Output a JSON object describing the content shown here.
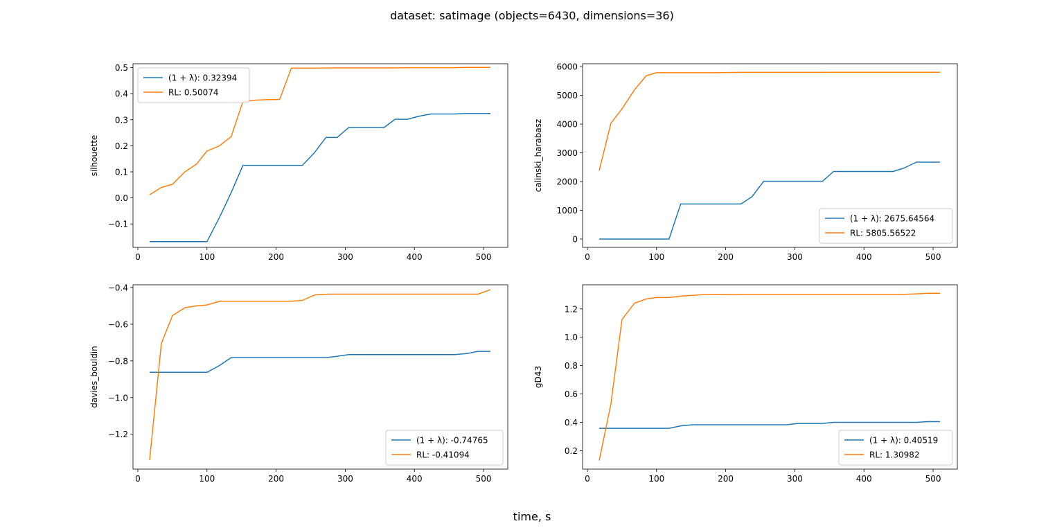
{
  "figure": {
    "suptitle": "dataset: satimage (objects=6430, dimensions=36)",
    "supxlabel": "time, s"
  },
  "colors": {
    "series1": "#1f77b4",
    "series2": "#ff7f0e"
  },
  "chart_data": [
    {
      "type": "line",
      "ylabel": "silhouette",
      "xlim": [
        -7,
        535
      ],
      "ylim": [
        -0.19,
        0.515
      ],
      "xticks": [
        0,
        100,
        200,
        300,
        400,
        500
      ],
      "yticks": [
        -0.1,
        0.0,
        0.1,
        0.2,
        0.3,
        0.4,
        0.5
      ],
      "ytick_labels": [
        "−0.1",
        "0.0",
        "0.1",
        "0.2",
        "0.3",
        "0.4",
        "0.5"
      ],
      "legend_loc": "upper left",
      "series": [
        {
          "name": "(1 + λ): 0.32394",
          "color": "#1f77b4",
          "x": [
            17,
            100,
            118,
            135,
            152,
            168,
            185,
            202,
            218,
            238,
            255,
            272,
            288,
            305,
            322,
            340,
            356,
            372,
            390,
            406,
            424,
            442,
            458,
            476,
            492,
            510
          ],
          "y": [
            -0.168,
            -0.168,
            -0.075,
            0.02,
            0.125,
            0.125,
            0.125,
            0.125,
            0.125,
            0.125,
            0.172,
            0.232,
            0.232,
            0.27,
            0.27,
            0.27,
            0.27,
            0.302,
            0.302,
            0.313,
            0.322,
            0.322,
            0.322,
            0.324,
            0.324,
            0.324
          ]
        },
        {
          "name": "RL: 0.50074",
          "color": "#ff7f0e",
          "x": [
            17,
            34,
            50,
            68,
            85,
            100,
            118,
            135,
            152,
            168,
            185,
            205,
            222,
            238,
            256,
            275,
            290,
            305,
            322,
            340,
            356,
            372,
            390,
            406,
            424,
            442,
            458,
            476,
            492,
            510
          ],
          "y": [
            0.012,
            0.04,
            0.052,
            0.1,
            0.13,
            0.18,
            0.2,
            0.235,
            0.37,
            0.375,
            0.377,
            0.378,
            0.498,
            0.498,
            0.498,
            0.499,
            0.499,
            0.499,
            0.499,
            0.499,
            0.499,
            0.499,
            0.5,
            0.5,
            0.5,
            0.5,
            0.5,
            0.501,
            0.501,
            0.501
          ]
        }
      ]
    },
    {
      "type": "line",
      "ylabel": "calinski_harabasz",
      "xlim": [
        -7,
        535
      ],
      "ylim": [
        -290,
        6100
      ],
      "xticks": [
        0,
        100,
        200,
        300,
        400,
        500
      ],
      "yticks": [
        0,
        1000,
        2000,
        3000,
        4000,
        5000,
        6000
      ],
      "ytick_labels": [
        "0",
        "1000",
        "2000",
        "3000",
        "4000",
        "5000",
        "6000"
      ],
      "legend_loc": "lower right",
      "series": [
        {
          "name": "(1 + λ): 2675.64564",
          "color": "#1f77b4",
          "x": [
            17,
            118,
            135,
            152,
            168,
            185,
            202,
            222,
            238,
            255,
            272,
            288,
            305,
            322,
            340,
            356,
            372,
            390,
            406,
            424,
            442,
            458,
            476,
            492,
            510
          ],
          "y": [
            0,
            0,
            1220,
            1220,
            1220,
            1220,
            1220,
            1220,
            1470,
            2010,
            2010,
            2010,
            2010,
            2010,
            2010,
            2350,
            2350,
            2350,
            2350,
            2350,
            2350,
            2470,
            2676,
            2676,
            2676
          ]
        },
        {
          "name": "RL: 5805.56522",
          "color": "#ff7f0e",
          "x": [
            17,
            34,
            50,
            68,
            85,
            100,
            118,
            135,
            152,
            168,
            185,
            202,
            222,
            238,
            256,
            275,
            290,
            305,
            322,
            340,
            356,
            372,
            390,
            406,
            424,
            442,
            458,
            476,
            492,
            510
          ],
          "y": [
            2380,
            4030,
            4530,
            5190,
            5680,
            5790,
            5790,
            5790,
            5790,
            5790,
            5790,
            5795,
            5800,
            5800,
            5800,
            5800,
            5800,
            5802,
            5802,
            5802,
            5803,
            5803,
            5804,
            5804,
            5804,
            5805,
            5805,
            5806,
            5806,
            5806
          ]
        }
      ]
    },
    {
      "type": "line",
      "ylabel": "davies_bouldin",
      "xlim": [
        -7,
        535
      ],
      "ylim": [
        -1.39,
        -0.385
      ],
      "xticks": [
        0,
        100,
        200,
        300,
        400,
        500
      ],
      "yticks": [
        -1.2,
        -1.0,
        -0.8,
        -0.6,
        -0.4
      ],
      "ytick_labels": [
        "−1.2",
        "−1.0",
        "−0.8",
        "−0.6",
        "−0.4"
      ],
      "legend_loc": "lower right",
      "series": [
        {
          "name": "(1 + λ): -0.74765",
          "color": "#1f77b4",
          "x": [
            17,
            100,
            118,
            135,
            152,
            168,
            185,
            202,
            218,
            238,
            255,
            272,
            288,
            305,
            322,
            340,
            356,
            372,
            390,
            406,
            424,
            442,
            458,
            476,
            492,
            510
          ],
          "y": [
            -0.862,
            -0.862,
            -0.825,
            -0.782,
            -0.782,
            -0.782,
            -0.782,
            -0.782,
            -0.782,
            -0.782,
            -0.782,
            -0.782,
            -0.775,
            -0.766,
            -0.766,
            -0.766,
            -0.766,
            -0.766,
            -0.766,
            -0.766,
            -0.766,
            -0.766,
            -0.766,
            -0.76,
            -0.748,
            -0.748
          ]
        },
        {
          "name": "RL: -0.41094",
          "color": "#ff7f0e",
          "x": [
            17,
            34,
            50,
            68,
            85,
            100,
            118,
            135,
            152,
            168,
            185,
            202,
            222,
            238,
            256,
            275,
            290,
            305,
            322,
            340,
            356,
            372,
            390,
            406,
            424,
            442,
            458,
            476,
            492,
            510
          ],
          "y": [
            -1.34,
            -0.705,
            -0.553,
            -0.51,
            -0.5,
            -0.495,
            -0.475,
            -0.475,
            -0.475,
            -0.475,
            -0.475,
            -0.475,
            -0.475,
            -0.47,
            -0.44,
            -0.436,
            -0.436,
            -0.436,
            -0.436,
            -0.436,
            -0.436,
            -0.436,
            -0.436,
            -0.436,
            -0.436,
            -0.436,
            -0.436,
            -0.436,
            -0.436,
            -0.411
          ]
        }
      ]
    },
    {
      "type": "line",
      "ylabel": "gD43",
      "xlim": [
        -7,
        535
      ],
      "ylim": [
        0.07,
        1.37
      ],
      "xticks": [
        0,
        100,
        200,
        300,
        400,
        500
      ],
      "yticks": [
        0.2,
        0.4,
        0.6,
        0.8,
        1.0,
        1.2
      ],
      "ytick_labels": [
        "0.2",
        "0.4",
        "0.6",
        "0.8",
        "1.0",
        "1.2"
      ],
      "legend_loc": "lower right",
      "series": [
        {
          "name": "(1 + λ): 0.40519",
          "color": "#1f77b4",
          "x": [
            17,
            118,
            135,
            152,
            168,
            185,
            202,
            222,
            238,
            255,
            272,
            288,
            305,
            322,
            340,
            356,
            372,
            390,
            406,
            424,
            442,
            458,
            476,
            492,
            510
          ],
          "y": [
            0.358,
            0.358,
            0.375,
            0.383,
            0.383,
            0.383,
            0.383,
            0.383,
            0.383,
            0.383,
            0.383,
            0.383,
            0.392,
            0.392,
            0.392,
            0.4,
            0.4,
            0.4,
            0.4,
            0.4,
            0.4,
            0.4,
            0.4,
            0.405,
            0.405
          ]
        },
        {
          "name": "RL: 1.30982",
          "color": "#ff7f0e",
          "x": [
            17,
            34,
            50,
            68,
            85,
            100,
            118,
            135,
            152,
            168,
            185,
            202,
            222,
            238,
            256,
            275,
            290,
            305,
            322,
            340,
            356,
            372,
            390,
            406,
            424,
            442,
            458,
            476,
            492,
            510
          ],
          "y": [
            0.13,
            0.53,
            1.125,
            1.24,
            1.27,
            1.28,
            1.28,
            1.29,
            1.295,
            1.3,
            1.3,
            1.302,
            1.303,
            1.303,
            1.303,
            1.303,
            1.303,
            1.303,
            1.303,
            1.303,
            1.303,
            1.303,
            1.303,
            1.303,
            1.303,
            1.303,
            1.303,
            1.306,
            1.31,
            1.31
          ]
        }
      ]
    }
  ]
}
